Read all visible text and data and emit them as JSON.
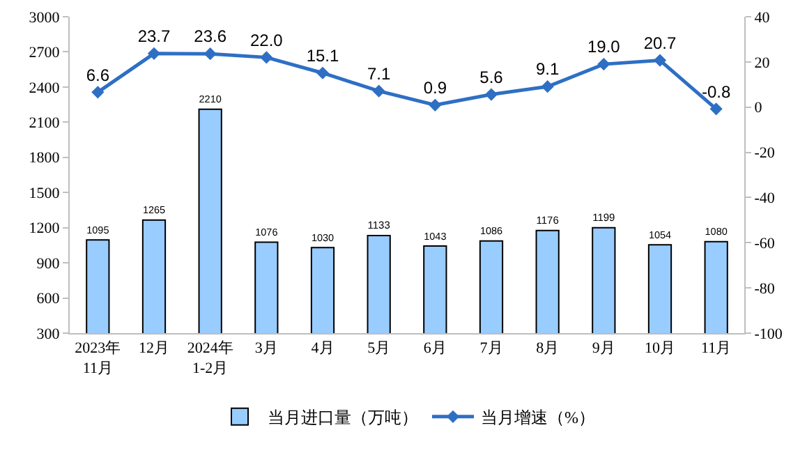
{
  "chart_data": {
    "type": "bar",
    "categories": [
      "2023年\n11月",
      "12月",
      "2024年\n1-2月",
      "3月",
      "4月",
      "5月",
      "6月",
      "7月",
      "8月",
      "9月",
      "10月",
      "11月"
    ],
    "series": [
      {
        "name": "当月进口量（万吨）",
        "color": "#99ccff",
        "values": [
          1095,
          1265,
          2210,
          1076,
          1030,
          1133,
          1043,
          1086,
          1176,
          1199,
          1054,
          1080
        ]
      },
      {
        "name": "当月增速（%）",
        "type": "line",
        "axis": "y2",
        "color": "#2e6fc4",
        "marker": "diamond",
        "values": [
          6.6,
          23.7,
          23.6,
          22.0,
          15.1,
          7.1,
          0.9,
          5.6,
          9.1,
          19.0,
          20.7,
          -0.8
        ],
        "value_labels": [
          "6.6",
          "23.7",
          "23.6",
          "22.0",
          "15.1",
          "7.1",
          "0.9",
          "5.6",
          "9.1",
          "19.0",
          "20.7",
          "-0.8"
        ]
      }
    ],
    "data_labels": true,
    "ylim": [
      300,
      3000
    ],
    "yticks": [
      300,
      600,
      900,
      1200,
      1500,
      1800,
      2100,
      2400,
      2700,
      3000
    ],
    "y2lim": [
      -100,
      40
    ],
    "y2ticks": [
      -100,
      -80,
      -60,
      -40,
      -20,
      0,
      20,
      40
    ],
    "grid": false,
    "legend": "bottom"
  }
}
